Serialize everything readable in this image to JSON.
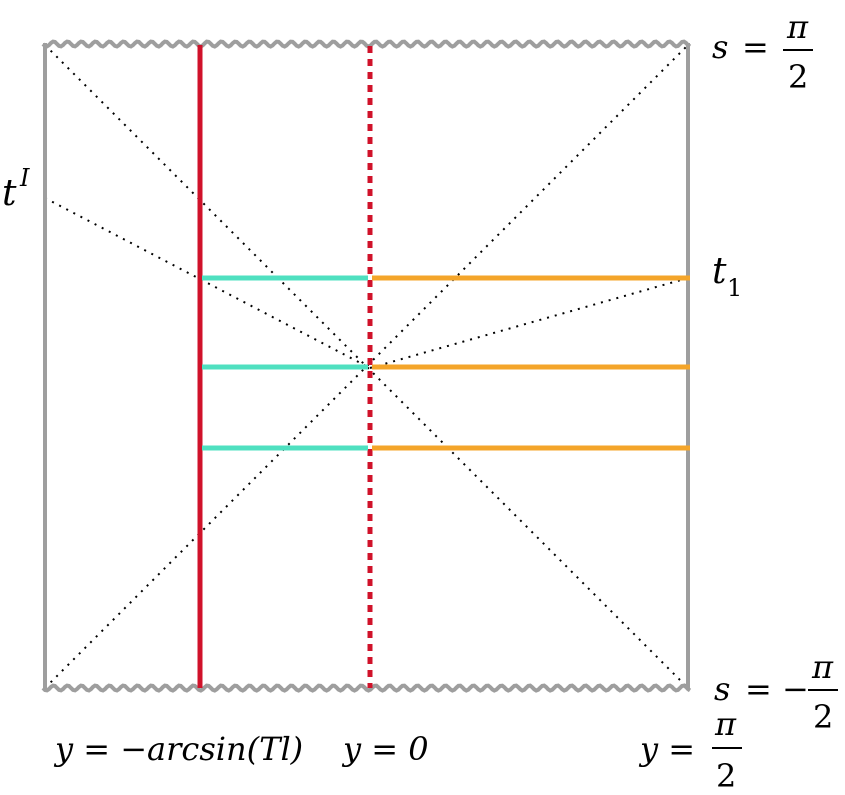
{
  "diagram": {
    "labels": {
      "top_s": "s",
      "top_eq": "=",
      "top_pi": "π",
      "top_den": "2",
      "bottom_s": "s",
      "bottom_eq": "= −",
      "bottom_pi": "π",
      "bottom_den": "2",
      "tI_base": "t",
      "tI_sup": "I",
      "t1_base": "t",
      "t1_sub": "1",
      "y_left": "y = −arcsin(Tl)",
      "y_zero": "y = 0",
      "y_right_lhs": "y =",
      "y_right_pi": "π",
      "y_right_den": "2"
    },
    "colors": {
      "boundary": "#9e9e9e",
      "brane_red": "#d0122a",
      "cyan": "#4fe0c0",
      "orange": "#f4a52a",
      "dotted": "#000000"
    }
  }
}
